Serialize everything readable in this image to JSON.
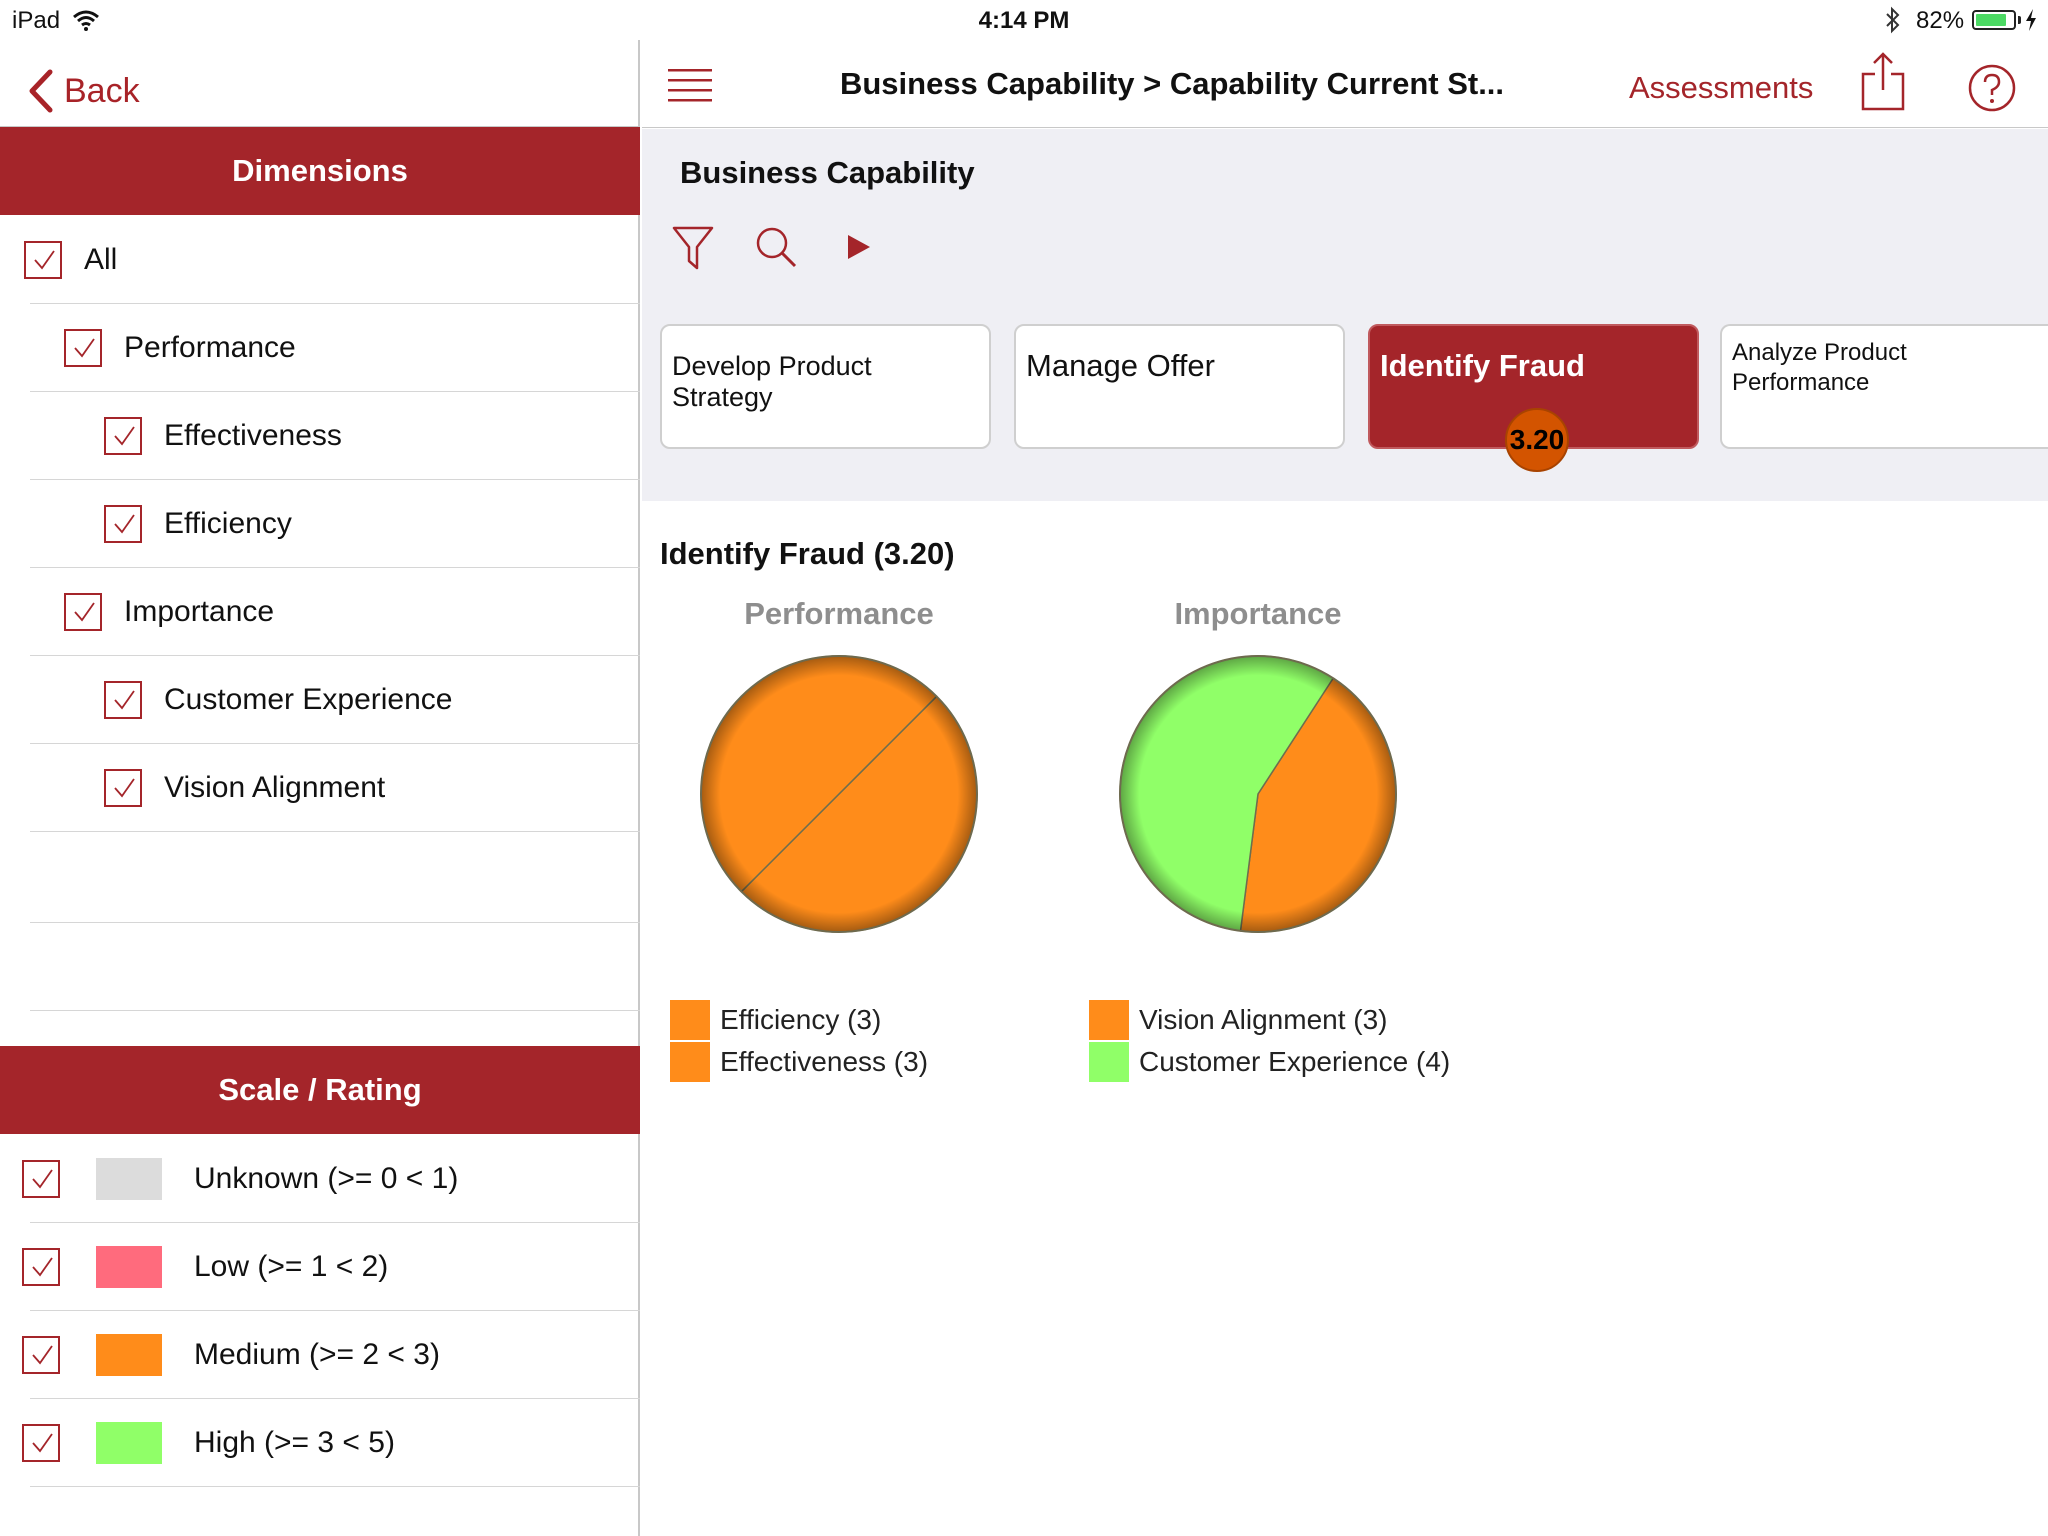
{
  "status_bar": {
    "device": "iPad",
    "time": "4:14 PM",
    "battery_text": "82%",
    "battery_level": 0.82
  },
  "left_panel": {
    "back_label": "Back",
    "dimensions_title": "Dimensions",
    "dimensions": [
      {
        "label": "All",
        "checked": true,
        "level": 0
      },
      {
        "label": "Performance",
        "checked": true,
        "level": 1
      },
      {
        "label": "Effectiveness",
        "checked": true,
        "level": 2
      },
      {
        "label": "Efficiency",
        "checked": true,
        "level": 2
      },
      {
        "label": "Importance",
        "checked": true,
        "level": 1
      },
      {
        "label": "Customer Experience",
        "checked": true,
        "level": 2
      },
      {
        "label": "Vision Alignment",
        "checked": true,
        "level": 2
      }
    ],
    "scale_title": "Scale / Rating",
    "scale": [
      {
        "label": "Unknown (>= 0 < 1)",
        "color": "#dcdcdc",
        "checked": true
      },
      {
        "label": "Low (>= 1 < 2)",
        "color": "#ff6b7d",
        "checked": true
      },
      {
        "label": "Medium (>= 2 < 3)",
        "color": "#ff8c1a",
        "checked": true
      },
      {
        "label": "High (>= 3 < 5)",
        "color": "#90ff68",
        "checked": true
      }
    ]
  },
  "right_nav": {
    "title": "Business Capability > Capability Current St...",
    "assessments_label": "Assessments"
  },
  "capabilities": {
    "title": "Business Capability",
    "cards": [
      {
        "name": "Develop Product Strategy",
        "selected": false
      },
      {
        "name": "Manage Offer",
        "selected": false
      },
      {
        "name": "Identify Fraud",
        "selected": true,
        "score": "3.20"
      },
      {
        "name": "Analyze Product Performance",
        "selected": false
      }
    ]
  },
  "detail": {
    "title": "Identify Fraud (3.20)"
  },
  "chart_data": [
    {
      "type": "pie",
      "title": "Performance",
      "slices": [
        {
          "label": "Efficiency (3)",
          "value": 3,
          "color": "#ff8c1a"
        },
        {
          "label": "Effectiveness (3)",
          "value": 3,
          "color": "#ff8c1a"
        }
      ]
    },
    {
      "type": "pie",
      "title": "Importance",
      "slices": [
        {
          "label": "Vision Alignment (3)",
          "value": 3,
          "color": "#ff8c1a"
        },
        {
          "label": "Customer Experience (4)",
          "value": 4,
          "color": "#90ff68"
        }
      ]
    }
  ],
  "colors": {
    "accent": "#a4252a",
    "medium": "#ff8c1a",
    "high": "#90ff68",
    "badge": "#d35400"
  },
  "icons": {
    "menu": "hamburger-menu-icon",
    "share": "share-icon",
    "help": "help-icon",
    "filter": "filter-icon",
    "search": "search-icon",
    "play": "play-icon",
    "back": "chevron-left-icon"
  }
}
